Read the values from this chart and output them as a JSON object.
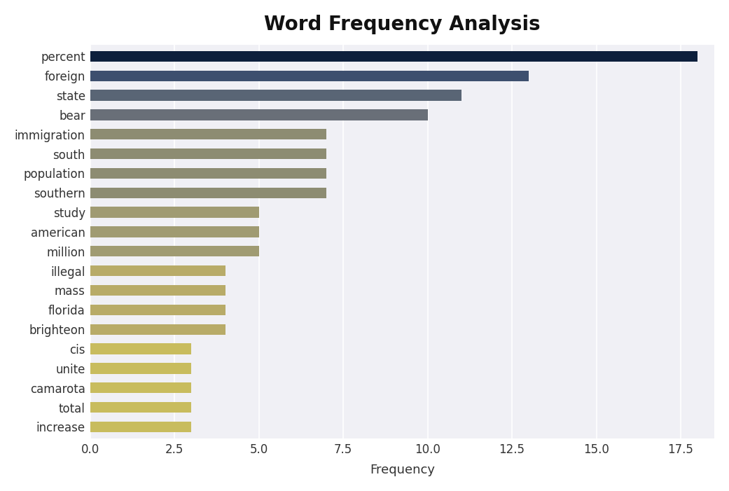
{
  "title": "Word Frequency Analysis",
  "categories": [
    "percent",
    "foreign",
    "state",
    "bear",
    "immigration",
    "south",
    "population",
    "southern",
    "study",
    "american",
    "million",
    "illegal",
    "mass",
    "florida",
    "brighteon",
    "cis",
    "unite",
    "camarota",
    "total",
    "increase"
  ],
  "values": [
    18.0,
    13.0,
    11.0,
    10.0,
    7.0,
    7.0,
    7.0,
    7.0,
    5.0,
    5.0,
    5.0,
    4.0,
    4.0,
    4.0,
    4.0,
    3.0,
    3.0,
    3.0,
    3.0,
    3.0
  ],
  "bar_colors": [
    "#0d1f3c",
    "#3d4f6e",
    "#596575",
    "#696f78",
    "#8d8c72",
    "#8d8c72",
    "#8d8c72",
    "#8d8c72",
    "#a09b72",
    "#a09b72",
    "#a09b72",
    "#b8ab68",
    "#b8ab68",
    "#b8ab68",
    "#b8ab68",
    "#c8bc5e",
    "#c8bc5e",
    "#c8bc5e",
    "#c8bc5e",
    "#c8bc5e"
  ],
  "xlabel": "Frequency",
  "ylabel": "",
  "xlim": [
    0,
    18.5
  ],
  "xticks": [
    0.0,
    2.5,
    5.0,
    7.5,
    10.0,
    12.5,
    15.0,
    17.5
  ],
  "figure_bg_color": "#ffffff",
  "plot_bg_color": "#f0f0f5",
  "title_fontsize": 20,
  "xlabel_fontsize": 13,
  "tick_fontsize": 12,
  "bar_height": 0.55
}
